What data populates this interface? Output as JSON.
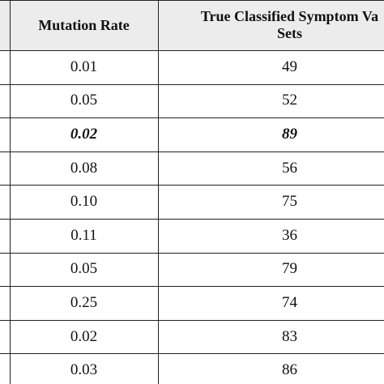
{
  "table": {
    "header": [
      "Mutation Rate",
      [
        "True Classified Symptom Va",
        "Sets"
      ]
    ],
    "rows": [
      {
        "cells": [
          "0.01",
          "49"
        ]
      },
      {
        "cells": [
          "0.05",
          "52"
        ]
      },
      {
        "cells": [
          "0.02",
          "89"
        ],
        "emphasis": true
      },
      {
        "cells": [
          "0.08",
          "56"
        ]
      },
      {
        "cells": [
          "0.10",
          "75"
        ]
      },
      {
        "cells": [
          "0.11",
          "36"
        ]
      },
      {
        "cells": [
          "0.05",
          "79"
        ]
      },
      {
        "cells": [
          "0.25",
          "74"
        ]
      },
      {
        "cells": [
          "0.02",
          "83"
        ]
      },
      {
        "cells": [
          "0.03",
          "86"
        ]
      }
    ]
  }
}
